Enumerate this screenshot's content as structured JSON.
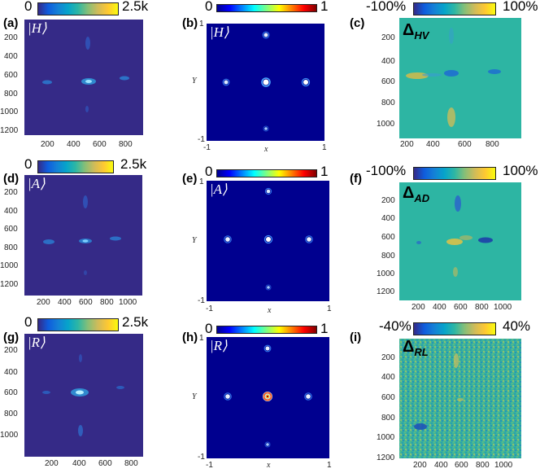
{
  "figure": {
    "colors": {
      "parula_bg": "#352a87",
      "jet_bg": "#00008f",
      "diff_bg": "#2db5a3",
      "spot_bright": "#e6f0ff",
      "spot_mid": "#3a8cd8"
    },
    "rows": [
      {
        "camera": {
          "label": "(a)",
          "ket": "|H⟩",
          "cbar_min": "0",
          "cbar_max": "2.5k",
          "x_ticks": [
            "200",
            "400",
            "600",
            "800"
          ],
          "y_ticks": [
            "200",
            "400",
            "600",
            "800",
            "1000",
            "1200"
          ]
        },
        "sim": {
          "label": "(b)",
          "ket": "|H⟩",
          "cbar_min": "0",
          "cbar_max": "1",
          "x_ticks": [
            "-1",
            "1"
          ],
          "y_ticks": [
            "1",
            "-1"
          ],
          "xlabel": "x",
          "ylabel": "Y"
        },
        "diff": {
          "label": "(c)",
          "delta": "Δ",
          "delta_sub": "HV",
          "cbar_min": "-100%",
          "cbar_max": "100%",
          "x_ticks": [
            "200",
            "400",
            "600",
            "800"
          ],
          "y_ticks": [
            "200",
            "400",
            "600",
            "800",
            "1000"
          ]
        }
      },
      {
        "camera": {
          "label": "(d)",
          "ket": "|A⟩",
          "cbar_min": "0",
          "cbar_max": "2.5k",
          "x_ticks": [
            "200",
            "400",
            "600",
            "800",
            "1000"
          ],
          "y_ticks": [
            "200",
            "400",
            "600",
            "800",
            "1000",
            "1200"
          ]
        },
        "sim": {
          "label": "(e)",
          "ket": "|A⟩",
          "cbar_min": "0",
          "cbar_max": "1",
          "x_ticks": [
            "-1",
            "1"
          ],
          "y_ticks": [
            "1",
            "-1"
          ],
          "xlabel": "x",
          "ylabel": "Y"
        },
        "diff": {
          "label": "(f)",
          "delta": "Δ",
          "delta_sub": "AD",
          "cbar_min": "-100%",
          "cbar_max": "100%",
          "x_ticks": [
            "200",
            "400",
            "600",
            "800",
            "1000"
          ],
          "y_ticks": [
            "200",
            "400",
            "600",
            "800",
            "1000",
            "1200"
          ]
        }
      },
      {
        "camera": {
          "label": "(g)",
          "ket": "|R⟩",
          "cbar_min": "0",
          "cbar_max": "2.5k",
          "x_ticks": [
            "200",
            "400",
            "600",
            "800"
          ],
          "y_ticks": [
            "200",
            "400",
            "600",
            "800",
            "1000"
          ]
        },
        "sim": {
          "label": "(h)",
          "ket": "|R⟩",
          "cbar_min": "0",
          "cbar_max": "1",
          "x_ticks": [
            "-1",
            "1"
          ],
          "y_ticks": [
            "1",
            "-1"
          ],
          "xlabel": "x",
          "ylabel": "Y"
        },
        "diff": {
          "label": "(i)",
          "delta": "Δ",
          "delta_sub": "RL",
          "cbar_min": "-40%",
          "cbar_max": "40%",
          "x_ticks": [
            "200",
            "400",
            "600",
            "800",
            "1000"
          ],
          "y_ticks": [
            "200",
            "400",
            "600",
            "800",
            "1000",
            "1200"
          ]
        }
      }
    ]
  }
}
